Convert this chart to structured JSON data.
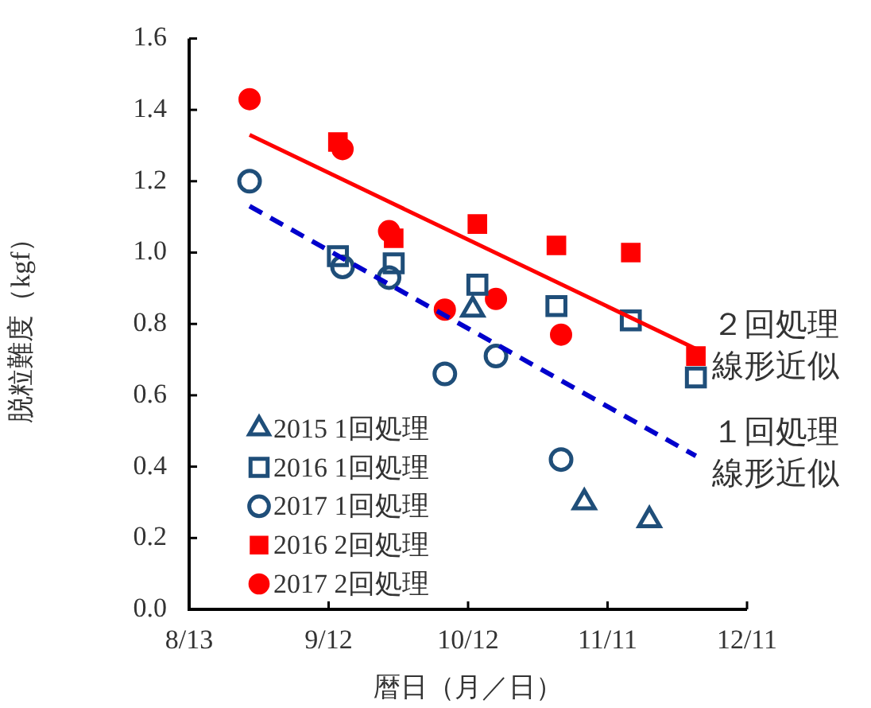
{
  "chart_data": {
    "type": "scatter",
    "xlabel": "暦日（月／日）",
    "ylabel": "脱粒難度（kgf）",
    "xlim": [
      "--08-13",
      "--12-11"
    ],
    "xticks": [
      {
        "value": "--08-13",
        "label": "8/13"
      },
      {
        "value": "--09-12",
        "label": "9/12"
      },
      {
        "value": "--10-12",
        "label": "10/12"
      },
      {
        "value": "--11-11",
        "label": "11/11"
      },
      {
        "value": "--12-11",
        "label": "12/11"
      }
    ],
    "ylim": [
      0,
      1.6
    ],
    "yticks": [
      {
        "value": 0,
        "label": "0.0"
      },
      0.2,
      0.4,
      0.6,
      0.8,
      {
        "value": 1,
        "label": "1.0"
      },
      1.2,
      1.4,
      1.6
    ],
    "legend": "bottom left",
    "series": [
      {
        "name": "2015 1回処理",
        "marker": "triangle-open",
        "color": "#1f4e79",
        "x": [
          "--10-13",
          "--11-06",
          "--11-20"
        ],
        "values": [
          0.84,
          0.3,
          0.25
        ]
      },
      {
        "name": "2016 1回処理",
        "marker": "square-open",
        "color": "#1f4e79",
        "x": [
          "--09-14",
          "--09-26",
          "--10-14",
          "--10-31",
          "--11-16",
          "--11-30"
        ],
        "values": [
          0.99,
          0.97,
          0.91,
          0.85,
          0.81,
          0.65
        ]
      },
      {
        "name": "2017 1回処理",
        "marker": "circle-open",
        "color": "#1f4e79",
        "x": [
          "--08-26",
          "--09-15",
          "--09-25",
          "--10-07",
          "--10-18",
          "--11-01"
        ],
        "values": [
          1.2,
          0.96,
          0.93,
          0.66,
          0.71,
          0.42
        ]
      },
      {
        "name": "2016 2回処理",
        "marker": "square",
        "color": "#ff0000",
        "x": [
          "--09-14",
          "--09-26",
          "--10-14",
          "--10-31",
          "--11-16",
          "--11-30"
        ],
        "values": [
          1.31,
          1.04,
          1.08,
          1.02,
          1.0,
          0.71
        ]
      },
      {
        "name": "2017 2回処理",
        "marker": "circle",
        "color": "#ff0000",
        "x": [
          "--08-26",
          "--09-15",
          "--09-25",
          "--10-07",
          "--10-18",
          "--11-01"
        ],
        "values": [
          1.43,
          1.29,
          1.06,
          0.84,
          0.87,
          0.77
        ]
      },
      {
        "name": "２回処理線形近似",
        "type": "line",
        "marker": "none",
        "line_style": "solid",
        "color": "#ff0000",
        "x": [
          "--08-26",
          "--11-30"
        ],
        "values": [
          1.33,
          0.73
        ]
      },
      {
        "name": "１回処理線形近似",
        "type": "line",
        "marker": "none",
        "line_style": "dashed",
        "color": "#0000cc",
        "x": [
          "--08-26",
          "--11-30"
        ],
        "values": [
          1.13,
          0.43
        ]
      }
    ]
  }
}
